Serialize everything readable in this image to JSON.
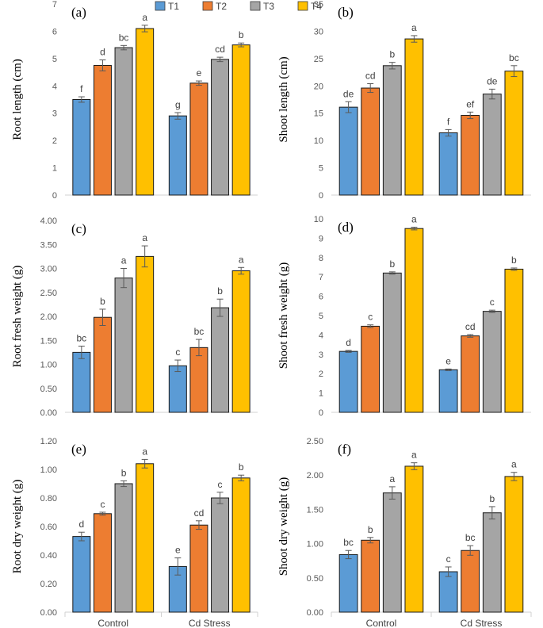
{
  "legend": [
    {
      "name": "T1",
      "color": "#5b9bd5"
    },
    {
      "name": "T2",
      "color": "#ed7d31"
    },
    {
      "name": "T3",
      "color": "#a5a5a5"
    },
    {
      "name": "T4",
      "color": "#ffc000"
    }
  ],
  "chart_data": [
    {
      "type": "bar",
      "panel": "(a)",
      "ylabel": "Root length (cm)",
      "categories": [
        "Control",
        "Cd Stress"
      ],
      "ylim": [
        0,
        7
      ],
      "ystep": 1,
      "decimals": 0,
      "series": [
        {
          "name": "T1",
          "values": [
            3.5,
            2.9
          ],
          "errors": [
            0.1,
            0.12
          ],
          "letters": [
            "f",
            "g"
          ]
        },
        {
          "name": "T2",
          "values": [
            4.75,
            4.1
          ],
          "errors": [
            0.2,
            0.08
          ],
          "letters": [
            "d",
            "e"
          ]
        },
        {
          "name": "T3",
          "values": [
            5.4,
            4.97
          ],
          "errors": [
            0.08,
            0.08
          ],
          "letters": [
            "bc",
            "cd"
          ]
        },
        {
          "name": "T4",
          "values": [
            6.1,
            5.5
          ],
          "errors": [
            0.12,
            0.07
          ],
          "letters": [
            "a",
            "b"
          ]
        }
      ]
    },
    {
      "type": "bar",
      "panel": "(b)",
      "ylabel": "Shoot length (cm)",
      "categories": [
        "Control",
        "Cd Stress"
      ],
      "ylim": [
        0,
        35
      ],
      "ystep": 5,
      "decimals": 0,
      "series": [
        {
          "name": "T1",
          "values": [
            16.1,
            11.4
          ],
          "errors": [
            1.0,
            0.6
          ],
          "letters": [
            "de",
            "f"
          ]
        },
        {
          "name": "T2",
          "values": [
            19.6,
            14.6
          ],
          "errors": [
            0.8,
            0.6
          ],
          "letters": [
            "cd",
            "ef"
          ]
        },
        {
          "name": "T3",
          "values": [
            23.7,
            18.5
          ],
          "errors": [
            0.6,
            0.9
          ],
          "letters": [
            "b",
            "de"
          ]
        },
        {
          "name": "T4",
          "values": [
            28.6,
            22.7
          ],
          "errors": [
            0.6,
            1.0
          ],
          "letters": [
            "a",
            "bc"
          ]
        }
      ]
    },
    {
      "type": "bar",
      "panel": "(c)",
      "ylabel": "Root fresh weight (g)",
      "categories": [
        "Control",
        "Cd Stress"
      ],
      "ylim": [
        0,
        4
      ],
      "ystep": 0.5,
      "decimals": 2,
      "series": [
        {
          "name": "T1",
          "values": [
            1.25,
            0.97
          ],
          "errors": [
            0.13,
            0.12
          ],
          "letters": [
            "bc",
            "c"
          ]
        },
        {
          "name": "T2",
          "values": [
            1.98,
            1.35
          ],
          "errors": [
            0.17,
            0.17
          ],
          "letters": [
            "b",
            "bc"
          ]
        },
        {
          "name": "T3",
          "values": [
            2.8,
            2.18
          ],
          "errors": [
            0.2,
            0.18
          ],
          "letters": [
            "a",
            "b"
          ]
        },
        {
          "name": "T4",
          "values": [
            3.25,
            2.95
          ],
          "errors": [
            0.22,
            0.07
          ],
          "letters": [
            "a",
            "a"
          ]
        }
      ]
    },
    {
      "type": "bar",
      "panel": "(d)",
      "ylabel": "Shoot fresh weight (g)",
      "categories": [
        "Control",
        "Cd Stress"
      ],
      "ylim": [
        0,
        10
      ],
      "ystep": 1,
      "decimals": 0,
      "series": [
        {
          "name": "T1",
          "values": [
            3.15,
            2.2
          ],
          "errors": [
            0.05,
            0.04
          ],
          "letters": [
            "d",
            "e"
          ]
        },
        {
          "name": "T2",
          "values": [
            4.45,
            3.95
          ],
          "errors": [
            0.07,
            0.07
          ],
          "letters": [
            "c",
            "cd"
          ]
        },
        {
          "name": "T3",
          "values": [
            7.2,
            5.22
          ],
          "errors": [
            0.06,
            0.06
          ],
          "letters": [
            "b",
            "c"
          ]
        },
        {
          "name": "T4",
          "values": [
            9.5,
            7.4
          ],
          "errors": [
            0.07,
            0.06
          ],
          "letters": [
            "a",
            "b"
          ]
        }
      ]
    },
    {
      "type": "bar",
      "panel": "(e)",
      "ylabel": "Root dry weight (g)",
      "categories": [
        "Control",
        "Cd Stress"
      ],
      "ylim": [
        0,
        1.2
      ],
      "ystep": 0.2,
      "decimals": 2,
      "series": [
        {
          "name": "T1",
          "values": [
            0.53,
            0.32
          ],
          "errors": [
            0.03,
            0.06
          ],
          "letters": [
            "d",
            "e"
          ]
        },
        {
          "name": "T2",
          "values": [
            0.69,
            0.61
          ],
          "errors": [
            0.01,
            0.03
          ],
          "letters": [
            "c",
            "cd"
          ]
        },
        {
          "name": "T3",
          "values": [
            0.9,
            0.8
          ],
          "errors": [
            0.02,
            0.04
          ],
          "letters": [
            "b",
            "c"
          ]
        },
        {
          "name": "T4",
          "values": [
            1.04,
            0.94
          ],
          "errors": [
            0.03,
            0.02
          ],
          "letters": [
            "a",
            "b"
          ]
        }
      ]
    },
    {
      "type": "bar",
      "panel": "(f)",
      "ylabel": "Shoot dry weight (g)",
      "categories": [
        "Control",
        "Cd Stress"
      ],
      "ylim": [
        0,
        2.5
      ],
      "ystep": 0.5,
      "decimals": 2,
      "series": [
        {
          "name": "T1",
          "values": [
            0.84,
            0.59
          ],
          "errors": [
            0.06,
            0.07
          ],
          "letters": [
            "bc",
            "c"
          ]
        },
        {
          "name": "T2",
          "values": [
            1.05,
            0.9
          ],
          "errors": [
            0.04,
            0.07
          ],
          "letters": [
            "b",
            "bc"
          ]
        },
        {
          "name": "T3",
          "values": [
            1.74,
            1.45
          ],
          "errors": [
            0.09,
            0.09
          ],
          "letters": [
            "a",
            "b"
          ]
        },
        {
          "name": "T4",
          "values": [
            2.13,
            1.98
          ],
          "errors": [
            0.05,
            0.06
          ],
          "letters": [
            "a",
            "a"
          ]
        }
      ]
    }
  ]
}
